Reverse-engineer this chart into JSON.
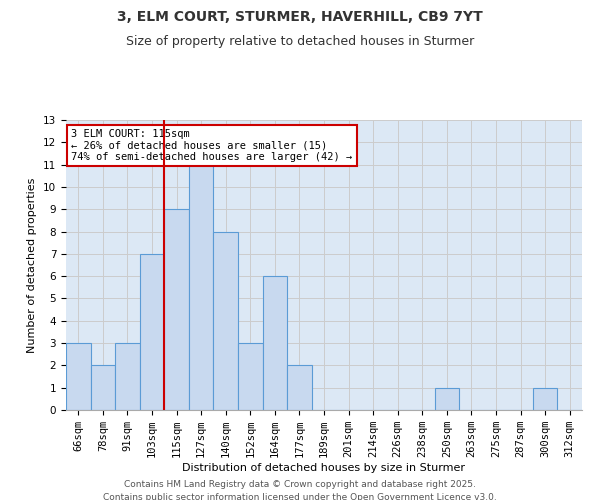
{
  "title": "3, ELM COURT, STURMER, HAVERHILL, CB9 7YT",
  "subtitle": "Size of property relative to detached houses in Sturmer",
  "xlabel": "Distribution of detached houses by size in Sturmer",
  "ylabel": "Number of detached properties",
  "bar_labels": [
    "66sqm",
    "78sqm",
    "91sqm",
    "103sqm",
    "115sqm",
    "127sqm",
    "140sqm",
    "152sqm",
    "164sqm",
    "177sqm",
    "189sqm",
    "201sqm",
    "214sqm",
    "226sqm",
    "238sqm",
    "250sqm",
    "263sqm",
    "275sqm",
    "287sqm",
    "300sqm",
    "312sqm"
  ],
  "bar_values": [
    3,
    2,
    3,
    7,
    9,
    11,
    8,
    3,
    6,
    2,
    0,
    0,
    0,
    0,
    0,
    1,
    0,
    0,
    0,
    1,
    0
  ],
  "bar_color": "#c8d9ef",
  "bar_edgecolor": "#5b9bd5",
  "red_line_index": 4,
  "annotation_line1": "3 ELM COURT: 115sqm",
  "annotation_line2": "← 26% of detached houses are smaller (15)",
  "annotation_line3": "74% of semi-detached houses are larger (42) →",
  "annotation_box_facecolor": "#ffffff",
  "annotation_box_edgecolor": "#cc0000",
  "vline_color": "#cc0000",
  "ylim": [
    0,
    13
  ],
  "yticks": [
    0,
    1,
    2,
    3,
    4,
    5,
    6,
    7,
    8,
    9,
    10,
    11,
    12,
    13
  ],
  "grid_color": "#cccccc",
  "bg_color": "#dce8f5",
  "footer1": "Contains HM Land Registry data © Crown copyright and database right 2025.",
  "footer2": "Contains public sector information licensed under the Open Government Licence v3.0.",
  "title_fontsize": 10,
  "subtitle_fontsize": 9,
  "axis_fontsize": 8,
  "tick_fontsize": 7.5,
  "ann_fontsize": 7.5,
  "footer_fontsize": 6.5
}
